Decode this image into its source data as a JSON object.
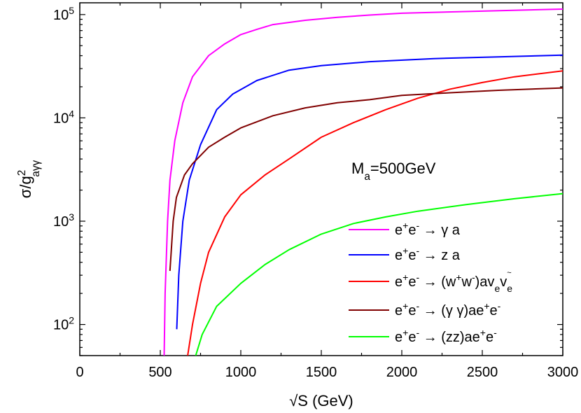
{
  "chart_data": {
    "type": "line",
    "xlabel": "√S (GeV)",
    "ylabel": {
      "main": "σ/g",
      "sup": "2",
      "sub": "aγγ"
    },
    "xlim": [
      0,
      3000
    ],
    "ylim": [
      50,
      130000
    ],
    "yscale": "log",
    "grid": false,
    "legend_position": "bottom-right",
    "x_ticks": [
      0,
      500,
      1000,
      1500,
      2000,
      2500,
      3000
    ],
    "x_tick_labels": [
      "0",
      "500",
      "1000",
      "1500",
      "2000",
      "2500",
      "3000"
    ],
    "y_ticks": [
      100,
      1000,
      10000,
      100000
    ],
    "y_tick_labels": [
      {
        "base": "10",
        "exp": "2"
      },
      {
        "base": "10",
        "exp": "3"
      },
      {
        "base": "10",
        "exp": "4"
      },
      {
        "base": "10",
        "exp": "5"
      }
    ],
    "annotation": {
      "main": "M",
      "sub": "a",
      "rest": "=500GeV"
    },
    "series": [
      {
        "label": [
          {
            "t": "e"
          },
          {
            "t": "+",
            "sup": true
          },
          {
            "t": "e"
          },
          {
            "t": "-",
            "sup": true
          },
          {
            "t": " → γ a"
          }
        ],
        "color": "#ff00ff",
        "points": [
          [
            524,
            50
          ],
          [
            530,
            200
          ],
          [
            545,
            1000
          ],
          [
            560,
            2500
          ],
          [
            590,
            6000
          ],
          [
            640,
            14000
          ],
          [
            700,
            25000
          ],
          [
            800,
            40000
          ],
          [
            900,
            52000
          ],
          [
            1000,
            64000
          ],
          [
            1100,
            72000
          ],
          [
            1200,
            80000
          ],
          [
            1400,
            88000
          ],
          [
            1600,
            94000
          ],
          [
            1800,
            99000
          ],
          [
            2000,
            103000
          ],
          [
            2500,
            108000
          ],
          [
            3000,
            113000
          ]
        ]
      },
      {
        "label": [
          {
            "t": "e"
          },
          {
            "t": "+",
            "sup": true
          },
          {
            "t": "e"
          },
          {
            "t": "-",
            "sup": true
          },
          {
            "t": " → z a"
          }
        ],
        "color": "#0000ff",
        "points": [
          [
            602,
            90
          ],
          [
            615,
            300
          ],
          [
            640,
            1000
          ],
          [
            680,
            2500
          ],
          [
            750,
            5500
          ],
          [
            850,
            12000
          ],
          [
            950,
            17000
          ],
          [
            1100,
            23000
          ],
          [
            1300,
            29000
          ],
          [
            1500,
            32000
          ],
          [
            1800,
            35000
          ],
          [
            2200,
            37500
          ],
          [
            2600,
            39000
          ],
          [
            3000,
            40500
          ]
        ]
      },
      {
        "label": [
          {
            "t": "e"
          },
          {
            "t": "+",
            "sup": true
          },
          {
            "t": "e"
          },
          {
            "t": "-",
            "sup": true
          },
          {
            "t": " → (w"
          },
          {
            "t": "+",
            "sup": true
          },
          {
            "t": "w"
          },
          {
            "t": "-",
            "sup": true
          },
          {
            "t": ")av"
          },
          {
            "t": "e",
            "sub": true
          },
          {
            "t": "v"
          },
          {
            "t": "e",
            "sub": true,
            "tilde": true
          }
        ],
        "color": "#ff0000",
        "points": [
          [
            670,
            50
          ],
          [
            700,
            100
          ],
          [
            750,
            250
          ],
          [
            800,
            500
          ],
          [
            900,
            1100
          ],
          [
            1000,
            1800
          ],
          [
            1150,
            2800
          ],
          [
            1300,
            4000
          ],
          [
            1500,
            6500
          ],
          [
            1700,
            9000
          ],
          [
            1900,
            12000
          ],
          [
            2100,
            15500
          ],
          [
            2300,
            19000
          ],
          [
            2500,
            22000
          ],
          [
            2700,
            25000
          ],
          [
            3000,
            28500
          ]
        ]
      },
      {
        "label": [
          {
            "t": "e"
          },
          {
            "t": "+",
            "sup": true
          },
          {
            "t": "e"
          },
          {
            "t": "-",
            "sup": true
          },
          {
            "t": " → (γ γ)ae"
          },
          {
            "t": "+",
            "sup": true
          },
          {
            "t": "e"
          },
          {
            "t": "-",
            "sup": true
          }
        ],
        "color": "#800000",
        "points": [
          [
            560,
            330
          ],
          [
            580,
            1000
          ],
          [
            600,
            1700
          ],
          [
            650,
            2800
          ],
          [
            700,
            3600
          ],
          [
            800,
            5200
          ],
          [
            900,
            6500
          ],
          [
            1000,
            8000
          ],
          [
            1200,
            10500
          ],
          [
            1400,
            12500
          ],
          [
            1600,
            14000
          ],
          [
            1800,
            15000
          ],
          [
            2000,
            16500
          ],
          [
            2300,
            17500
          ],
          [
            2600,
            18500
          ],
          [
            3000,
            19500
          ]
        ]
      },
      {
        "label": [
          {
            "t": "e"
          },
          {
            "t": "+",
            "sup": true
          },
          {
            "t": "e"
          },
          {
            "t": "-",
            "sup": true
          },
          {
            "t": " → (zz)ae"
          },
          {
            "t": "+",
            "sup": true
          },
          {
            "t": "e"
          },
          {
            "t": "-",
            "sup": true
          }
        ],
        "color": "#00ff00",
        "points": [
          [
            720,
            50
          ],
          [
            760,
            80
          ],
          [
            850,
            150
          ],
          [
            1000,
            250
          ],
          [
            1150,
            380
          ],
          [
            1300,
            530
          ],
          [
            1500,
            750
          ],
          [
            1700,
            950
          ],
          [
            1900,
            1100
          ],
          [
            2100,
            1250
          ],
          [
            2400,
            1450
          ],
          [
            2700,
            1650
          ],
          [
            3000,
            1850
          ]
        ]
      }
    ]
  }
}
